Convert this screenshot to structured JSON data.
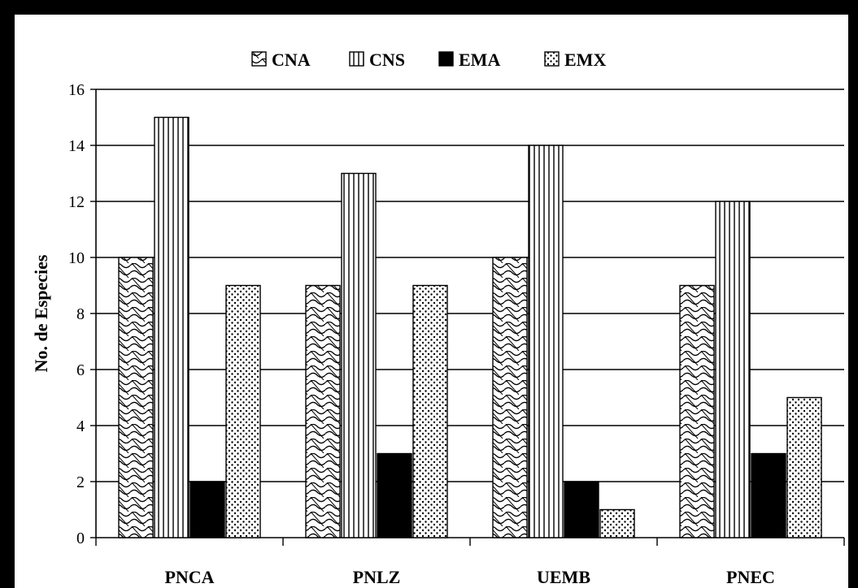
{
  "chart_data": {
    "type": "bar",
    "title": "",
    "xlabel": "",
    "ylabel": "No. de Especies",
    "ylim": [
      0,
      16
    ],
    "yticks": [
      0,
      2,
      4,
      6,
      8,
      10,
      12,
      14,
      16
    ],
    "grid": true,
    "legend_position": "top",
    "categories": [
      "PNCA",
      "PNLZ",
      "UEMB",
      "PNEC"
    ],
    "series": [
      {
        "name": "CNA",
        "values": [
          10,
          9,
          10,
          9
        ],
        "pattern": "wave"
      },
      {
        "name": "CNS",
        "values": [
          15,
          13,
          14,
          12
        ],
        "pattern": "vertical-lines"
      },
      {
        "name": "EMA",
        "values": [
          2,
          3,
          2,
          3
        ],
        "pattern": "solid-black"
      },
      {
        "name": "EMX",
        "values": [
          9,
          9,
          1,
          5
        ],
        "pattern": "dots"
      }
    ]
  }
}
